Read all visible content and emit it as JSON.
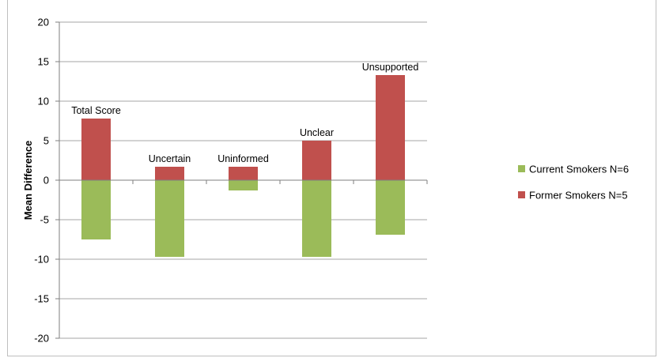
{
  "chart_data": {
    "type": "bar",
    "stacked": true,
    "categories": [
      "Total Score",
      "Uncertain",
      "Uninformed",
      "Unclear",
      "Unsupported"
    ],
    "series": [
      {
        "name": "Current Smokers N=6",
        "color": "#9BBB59",
        "values": [
          -7.5,
          -9.7,
          -1.3,
          -9.7,
          -6.9
        ]
      },
      {
        "name": "Former Smokers N=5",
        "color": "#C0504D",
        "values": [
          7.8,
          1.7,
          1.7,
          5.0,
          13.3
        ]
      }
    ],
    "title": "",
    "xlabel": "",
    "ylabel": "Mean Difference",
    "ylim": [
      -20,
      20
    ],
    "yticks": [
      20,
      15,
      10,
      5,
      0,
      -5,
      -10,
      -15,
      -20
    ],
    "grid": true,
    "legend": "right"
  }
}
